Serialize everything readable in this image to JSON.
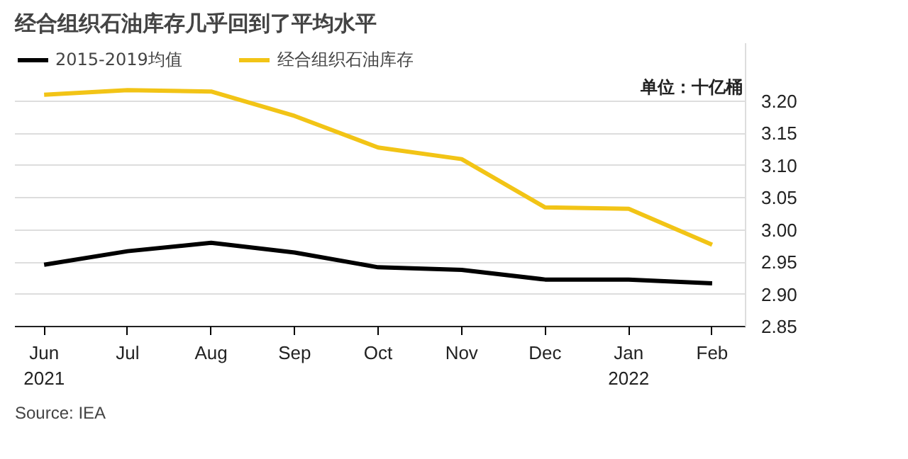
{
  "chart_data": {
    "type": "line",
    "title": "经合组织石油库存几乎回到了平均水平",
    "categories": [
      "Jun\n2021",
      "Jul",
      "Aug",
      "Sep",
      "Oct",
      "Nov",
      "Dec",
      "Jan\n2022",
      "Feb"
    ],
    "series": [
      {
        "name": "2015-2019均值",
        "color": "#000000",
        "values": [
          2.946,
          2.967,
          2.98,
          2.965,
          2.942,
          2.938,
          2.923,
          2.923,
          2.917
        ]
      },
      {
        "name": "经合组织石油库存",
        "color": "#f2c416",
        "values": [
          3.21,
          3.217,
          3.215,
          3.177,
          3.128,
          3.11,
          3.035,
          3.033,
          2.977
        ]
      }
    ],
    "ylim": [
      2.85,
      3.29
    ],
    "yticks": [
      {
        "value": 3.2,
        "label": "3.20"
      },
      3.15,
      {
        "value": 3.1,
        "label": "3.10"
      },
      3.05,
      {
        "value": 3.0,
        "label": "3.00"
      },
      2.95,
      {
        "value": 2.9,
        "label": "2.90"
      },
      2.85
    ],
    "grid": "y",
    "legend": "top left",
    "line_style": "solid",
    "marker": "none",
    "annotations": [
      "单位：十亿桶",
      "Source: IEA"
    ]
  }
}
